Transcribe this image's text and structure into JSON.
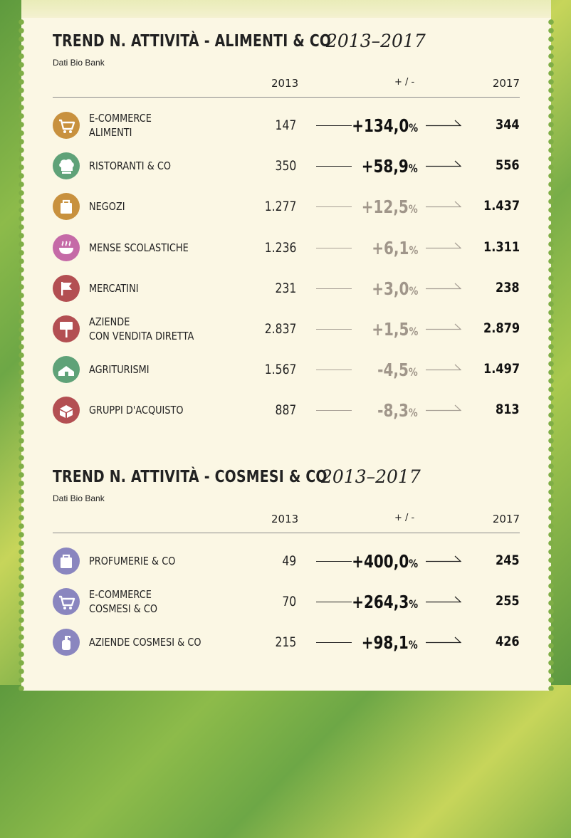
{
  "sections": [
    {
      "title": "TREND N. ATTIVITÀ - ALIMENTI & CO",
      "years": "2013–2017",
      "source": "Dati Bio Bank",
      "col_2013": "2013",
      "col_change": "+ / -",
      "col_2017": "2017",
      "rows": [
        {
          "label1": "E-COMMERCE",
          "label2": "ALIMENTI",
          "v2013": "147",
          "change": "+134,0",
          "pct": "%",
          "v2017": "344",
          "icon": "cart-icon",
          "color": "#c8913e",
          "strength": "dark"
        },
        {
          "label1": "RISTORANTI & CO",
          "label2": "",
          "v2013": "350",
          "change": "+58,9",
          "pct": "%",
          "v2017": "556",
          "icon": "chef-hat-icon",
          "color": "#5fa278",
          "strength": "dark"
        },
        {
          "label1": "NEGOZI",
          "label2": "",
          "v2013": "1.277",
          "change": "+12,5",
          "pct": "%",
          "v2017": "1.437",
          "icon": "shopping-bag-icon",
          "color": "#c8913e",
          "strength": "light"
        },
        {
          "label1": "MENSE SCOLASTICHE",
          "label2": "",
          "v2013": "1.236",
          "change": "+6,1",
          "pct": "%",
          "v2017": "1.311",
          "icon": "steaming-bowl-icon",
          "color": "#c56aa7",
          "strength": "light"
        },
        {
          "label1": "MERCATINI",
          "label2": "",
          "v2013": "231",
          "change": "+3,0",
          "pct": "%",
          "v2017": "238",
          "icon": "flag-icon",
          "color": "#b34f52",
          "strength": "light"
        },
        {
          "label1": "AZIENDE",
          "label2": "CON VENDITA DIRETTA",
          "v2013": "2.837",
          "change": "+1,5",
          "pct": "%",
          "v2017": "2.879",
          "icon": "signpost-icon",
          "color": "#b34f52",
          "strength": "light"
        },
        {
          "label1": "AGRITURISMI",
          "label2": "",
          "v2013": "1.567",
          "change": "-4,5",
          "pct": "%",
          "v2017": "1.497",
          "icon": "farmhouse-icon",
          "color": "#5fa278",
          "strength": "light"
        },
        {
          "label1": "GRUPPI D'ACQUISTO",
          "label2": "",
          "v2013": "887",
          "change": "-8,3",
          "pct": "%",
          "v2017": "813",
          "icon": "box-icon",
          "color": "#b34f52",
          "strength": "light"
        }
      ]
    },
    {
      "title": "TREND N. ATTIVITÀ - COSMESI & CO",
      "years": "2013–2017",
      "source": "Dati Bio Bank",
      "col_2013": "2013",
      "col_change": "+ / -",
      "col_2017": "2017",
      "rows": [
        {
          "label1": "PROFUMERIE & CO",
          "label2": "",
          "v2013": "49",
          "change": "+400,0",
          "pct": "%",
          "v2017": "245",
          "icon": "shopping-bag-icon",
          "color": "#8a86bf",
          "strength": "dark"
        },
        {
          "label1": "E-COMMERCE",
          "label2": "COSMESI & CO",
          "v2013": "70",
          "change": "+264,3",
          "pct": "%",
          "v2017": "255",
          "icon": "cart-icon",
          "color": "#8a86bf",
          "strength": "dark"
        },
        {
          "label1": "AZIENDE COSMESI & CO",
          "label2": "",
          "v2013": "215",
          "change": "+98,1",
          "pct": "%",
          "v2017": "426",
          "icon": "pump-bottle-icon",
          "color": "#8a86bf",
          "strength": "dark"
        }
      ]
    }
  ]
}
